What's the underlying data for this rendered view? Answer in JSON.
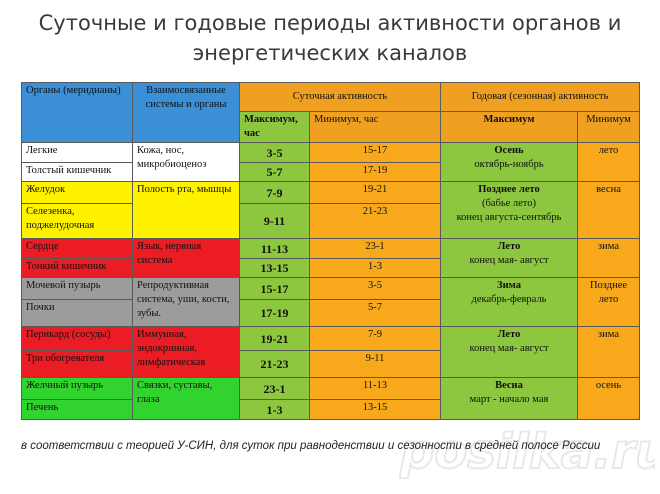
{
  "title_line1": "Суточные и годовые периоды активности органов и",
  "title_line2": "энергетических каналов",
  "headers": {
    "organs": "Органы (меридианы)",
    "related": "Взаимосвязанные системы и органы",
    "daily": "Суточная активность",
    "yearly": "Годовая (сезонная)  активность",
    "daily_max": "Максимум, час",
    "daily_min": "Минимум, час",
    "yearly_max": "Максимум",
    "yearly_min": "Минимум"
  },
  "groups": [
    {
      "color": "white",
      "related": "Кожа, нос, микробиоценоз",
      "season_name": "Осень",
      "season_range": "октябрь-ноябрь",
      "season_min": "лето",
      "organs": [
        {
          "organ": "Легкие",
          "max": "3-5",
          "min": "15-17"
        },
        {
          "organ": "Толстый кишечник",
          "max": "5-7",
          "min": "17-19"
        }
      ]
    },
    {
      "color": "yellow",
      "related": "Полость рта, мышцы",
      "season_name": "Позднее лето",
      "season_extra": "(бабье лето)",
      "season_range": "конец августа-сентябрь",
      "season_min": "весна",
      "organs": [
        {
          "organ": "Желудок",
          "max": "7-9",
          "min": "19-21"
        },
        {
          "organ": "Селезенка, поджелудочная",
          "max": "9-11",
          "min": "21-23"
        }
      ]
    },
    {
      "color": "red",
      "related": "Язык, нервная система",
      "season_name": "Лето",
      "season_range": "конец мая- август",
      "season_min": "зима",
      "organs": [
        {
          "organ": "Сердце",
          "max": "11-13",
          "min": "23-1"
        },
        {
          "organ": "Тонкий кишечник",
          "max": "13-15",
          "min": "1-3"
        }
      ]
    },
    {
      "color": "gray",
      "related": "Репродуктивная система, уши, кости, зубы.",
      "season_name": "Зима",
      "season_range": "декабрь-февраль",
      "season_min": "Позднее лето",
      "organs": [
        {
          "organ": "Мочевой пузырь",
          "max": "15-17",
          "min": "3-5"
        },
        {
          "organ": "Почки",
          "max": "17-19",
          "min": "5-7"
        }
      ]
    },
    {
      "color": "red",
      "related": "Иммунная, эндокринная, лимфатическая",
      "season_name": "Лето",
      "season_range": "конец мая- август",
      "season_min": "зима",
      "organs": [
        {
          "organ": "Перикард (сосуды)",
          "max": "19-21",
          "min": "7-9"
        },
        {
          "organ": "Три обогревателя",
          "max": "21-23",
          "min": "9-11"
        }
      ]
    },
    {
      "color": "green",
      "related": "Связки, суставы, глаза",
      "season_name": "Весна",
      "season_range": "март - начало мая",
      "season_min": "осень",
      "organs": [
        {
          "organ": "Желчный пузырь",
          "max": "23-1",
          "min": "11-13"
        },
        {
          "organ": "Печень",
          "max": "1-3",
          "min": "13-15"
        }
      ]
    }
  ],
  "footer": "в соответствии с теорией У-СИН, для суток при равноденствии и сезонности в средней полосе России",
  "watermark": "posilka.ru"
}
